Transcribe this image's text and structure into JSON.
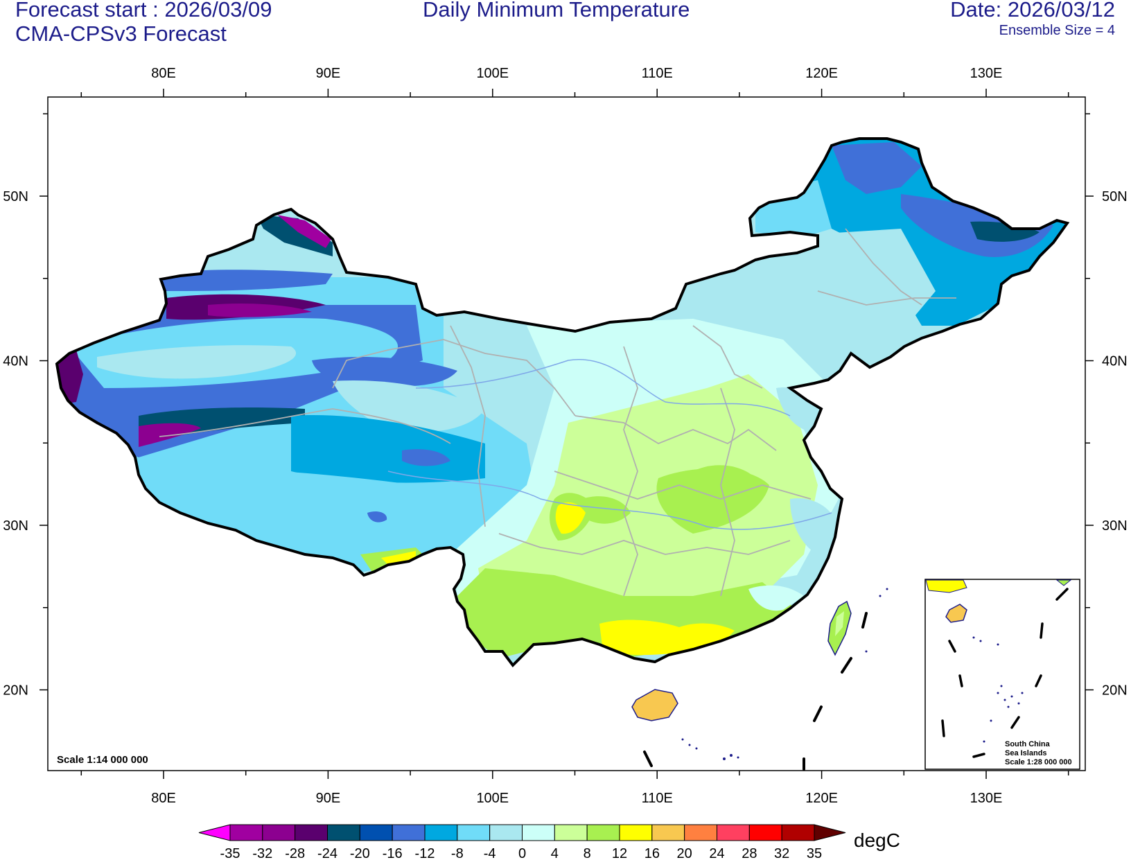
{
  "header": {
    "forecast_start": "Forecast start : 2026/03/09",
    "model": "CMA-CPSv3 Forecast",
    "title": "Daily Minimum Temperature",
    "date": "Date: 2026/03/12",
    "ensemble": "Ensemble Size = 4"
  },
  "axes": {
    "lon_labels": [
      "80E",
      "90E",
      "100E",
      "110E",
      "120E",
      "130E"
    ],
    "lat_labels": [
      "50N",
      "40N",
      "30N",
      "20N"
    ]
  },
  "scale_text": "Scale 1:14 000 000",
  "inset": {
    "line1": "South China",
    "line2": "Sea Islands",
    "line3": "Scale 1:28 000 000"
  },
  "colorbar": {
    "unit": "degC",
    "ticks": [
      "-35",
      "-32",
      "-28",
      "-24",
      "-20",
      "-16",
      "-12",
      "-8",
      "-4",
      "0",
      "4",
      "8",
      "12",
      "16",
      "20",
      "24",
      "28",
      "32",
      "35"
    ],
    "colors": [
      "#ff00ff",
      "#a000a0",
      "#8c0090",
      "#5a006e",
      "#005070",
      "#0050b0",
      "#4070d8",
      "#00a8e0",
      "#70dcf8",
      "#aae8f0",
      "#ccfff8",
      "#ccff99",
      "#a8f050",
      "#ffff00",
      "#f8c850",
      "#ff8040",
      "#ff4060",
      "#ff0000",
      "#b00000",
      "#600000"
    ]
  }
}
